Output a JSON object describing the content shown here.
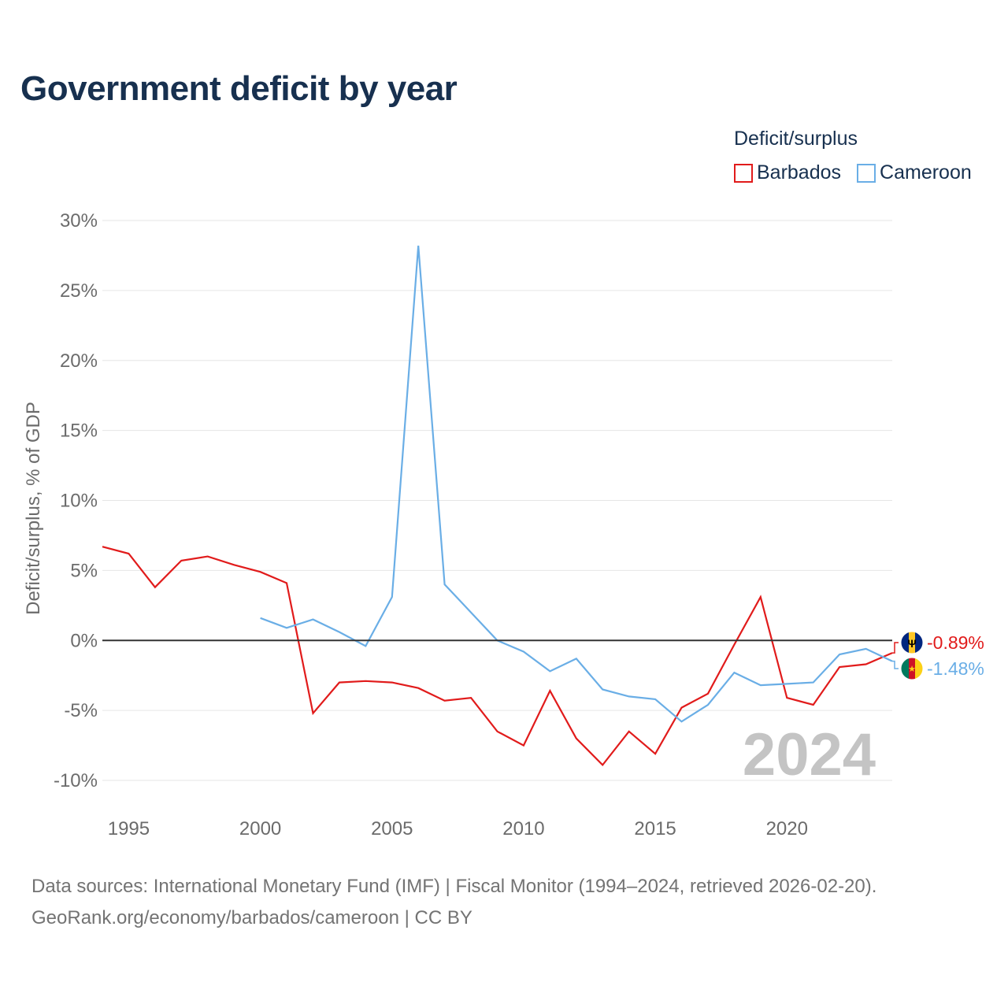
{
  "title": "Government deficit by year",
  "legend": {
    "title": "Deficit/surplus",
    "items": [
      {
        "label": "Barbados",
        "color": "#e11b1b"
      },
      {
        "label": "Cameroon",
        "color": "#6aaee6"
      }
    ]
  },
  "chart_data": {
    "type": "line",
    "title": "Government deficit by year",
    "xlabel": "",
    "ylabel": "Deficit/surplus, % of GDP",
    "xlim": [
      1994,
      2024
    ],
    "ylim": [
      -10,
      30
    ],
    "x_ticks": [
      1995,
      2000,
      2005,
      2010,
      2015,
      2020
    ],
    "y_ticks": [
      {
        "value": 30,
        "label": "30%"
      },
      {
        "value": 25,
        "label": "25%"
      },
      {
        "value": 20,
        "label": "20%"
      },
      {
        "value": 15,
        "label": "15%"
      },
      {
        "value": 10,
        "label": "10%"
      },
      {
        "value": 5,
        "label": "5%"
      },
      {
        "value": 0,
        "label": "0%"
      },
      {
        "value": -5,
        "label": "-5%"
      },
      {
        "value": -10,
        "label": "-10%"
      }
    ],
    "grid": true,
    "year_watermark": "2024",
    "series": [
      {
        "name": "Barbados",
        "color": "#e11b1b",
        "end_label": "-0.89%",
        "flag": "barbados-flag",
        "x": [
          1994,
          1995,
          1996,
          1997,
          1998,
          1999,
          2000,
          2001,
          2002,
          2003,
          2004,
          2005,
          2006,
          2007,
          2008,
          2009,
          2010,
          2011,
          2012,
          2013,
          2014,
          2015,
          2016,
          2017,
          2018,
          2019,
          2020,
          2021,
          2022,
          2023,
          2024
        ],
        "values": [
          6.7,
          6.2,
          3.8,
          5.7,
          6.0,
          5.4,
          4.9,
          4.1,
          -5.2,
          -3.0,
          -2.9,
          -3.0,
          -3.4,
          -4.3,
          -4.1,
          -6.5,
          -7.5,
          -3.6,
          -7.0,
          -8.9,
          -6.5,
          -8.1,
          -4.8,
          -3.8,
          -0.3,
          3.1,
          -4.1,
          -4.6,
          -1.9,
          -1.7,
          -0.89
        ]
      },
      {
        "name": "Cameroon",
        "color": "#6aaee6",
        "end_label": "-1.48%",
        "flag": "cameroon-flag",
        "x": [
          2000,
          2001,
          2002,
          2003,
          2004,
          2005,
          2006,
          2007,
          2008,
          2009,
          2010,
          2011,
          2012,
          2013,
          2014,
          2015,
          2016,
          2017,
          2018,
          2019,
          2020,
          2021,
          2022,
          2023,
          2024
        ],
        "values": [
          1.6,
          0.9,
          1.5,
          0.6,
          -0.4,
          3.1,
          28.2,
          4.0,
          2.0,
          0.0,
          -0.8,
          -2.2,
          -1.3,
          -3.5,
          -4.0,
          -4.2,
          -5.8,
          -4.6,
          -2.3,
          -3.2,
          -3.1,
          -3.0,
          -1.0,
          -0.6,
          -1.48
        ]
      }
    ]
  },
  "footer": {
    "line1": "Data sources: International Monetary Fund (IMF) | Fiscal Monitor (1994–2024, retrieved 2026-02-20).",
    "line2": "GeoRank.org/economy/barbados/cameroon | CC BY"
  }
}
